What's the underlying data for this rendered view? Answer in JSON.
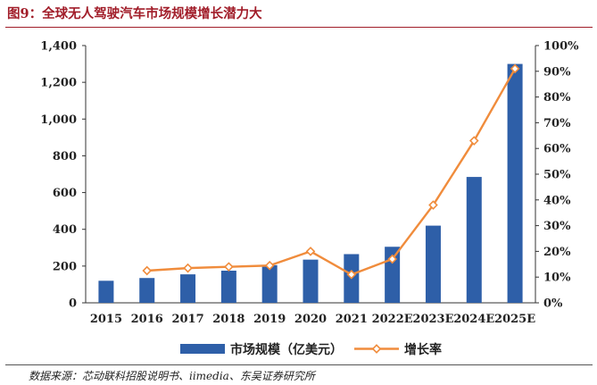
{
  "figure_title": "图9：全球无人驾驶汽车市场规模增长潜力大",
  "source_note": "数据来源：芯动联科招股说明书、iimedia、东吴证券研究所",
  "colors": {
    "bar": "#2e5fa8",
    "line": "#f08c3c",
    "title": "#a11d29"
  },
  "chart_data": {
    "type": "bar",
    "title": "全球无人驾驶汽车市场规模增长潜力大",
    "categories": [
      "2015",
      "2016",
      "2017",
      "2018",
      "2019",
      "2020",
      "2021",
      "2022E",
      "2023E",
      "2024E",
      "2025E"
    ],
    "y_ticks": [
      "0",
      "200",
      "400",
      "600",
      "800",
      "1,000",
      "1,200",
      "1,400"
    ],
    "y2_ticks": [
      "0%",
      "10%",
      "20%",
      "30%",
      "40%",
      "50%",
      "60%",
      "70%",
      "80%",
      "90%",
      "100%"
    ],
    "ylim": [
      0,
      1400
    ],
    "y2lim": [
      0,
      100
    ],
    "series": [
      {
        "name": "市场规模（亿美元）",
        "type": "bar",
        "axis": "left",
        "values": [
          120,
          135,
          155,
          175,
          205,
          235,
          265,
          305,
          420,
          685,
          1300
        ]
      },
      {
        "name": "增长率",
        "type": "line",
        "axis": "right",
        "marker": "diamond",
        "values": [
          null,
          12.5,
          13.5,
          14,
          14.5,
          20,
          11,
          17,
          38,
          63,
          91
        ]
      }
    ],
    "legend_position": "bottom",
    "grid": false
  }
}
